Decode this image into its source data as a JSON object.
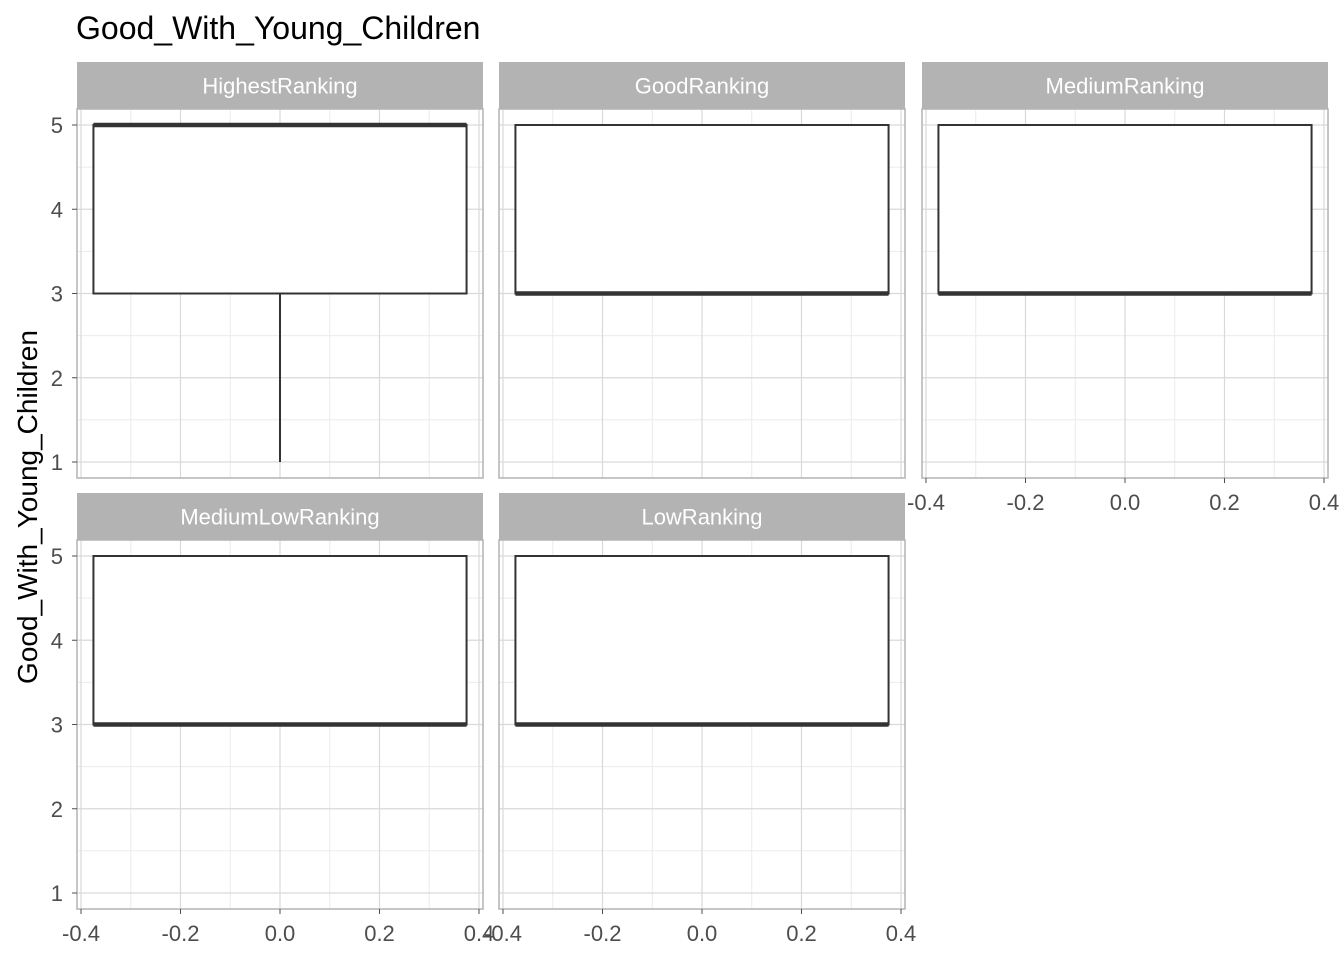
{
  "chart_data": {
    "type": "boxplot",
    "title": "Good_With_Young_Children",
    "ylabel": "Good_With_Young_Children",
    "xlabel": "",
    "xlim": [
      -0.4,
      0.4
    ],
    "ylim": [
      1,
      5
    ],
    "x_ticks": [
      -0.4,
      -0.2,
      0.0,
      0.2,
      0.4
    ],
    "x_tick_labels": [
      "-0.4",
      "-0.2",
      "0.0",
      "0.2",
      "0.4"
    ],
    "y_ticks": [
      1,
      2,
      3,
      4,
      5
    ],
    "y_tick_labels": [
      "1",
      "2",
      "3",
      "4",
      "5"
    ],
    "grid": true,
    "box_x_range": [
      -0.375,
      0.375
    ],
    "panels": [
      {
        "label": "HighestRanking",
        "min": 1,
        "q1": 3,
        "median": 5,
        "q3": 5,
        "max": 5
      },
      {
        "label": "GoodRanking",
        "min": 3,
        "q1": 3,
        "median": 3,
        "q3": 5,
        "max": 5
      },
      {
        "label": "MediumRanking",
        "min": 3,
        "q1": 3,
        "median": 3,
        "q3": 5,
        "max": 5
      },
      {
        "label": "MediumLowRanking",
        "min": 3,
        "q1": 3,
        "median": 3,
        "q3": 5,
        "max": 5
      },
      {
        "label": "LowRanking",
        "min": 3,
        "q1": 3,
        "median": 3,
        "q3": 5,
        "max": 5
      }
    ],
    "colors": {
      "strip_bg": "#b3b3b3",
      "strip_text": "#ffffff",
      "grid_major": "#d9d9d9",
      "grid_minor": "#ebebeb",
      "panel_border": "#b3b3b3",
      "box_line": "#333333",
      "tick_text": "#4d4d4d"
    }
  }
}
